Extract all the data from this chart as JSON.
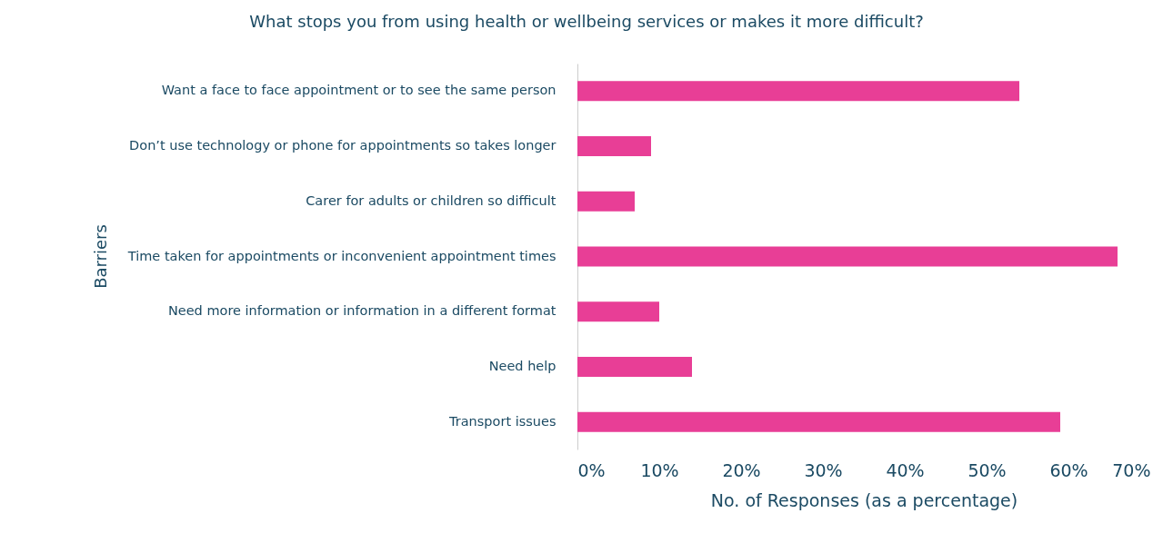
{
  "chart_data": {
    "type": "bar",
    "orientation": "horizontal",
    "title": "What stops you from using health or wellbeing services or makes it more difficult?",
    "xlabel": "No. of Responses (as a percentage)",
    "ylabel": "Barriers",
    "categories": [
      "Want a face to face appointment or to see the same person",
      "Don’t use technology or phone for appointments so takes longer",
      "Carer for adults or children so difficult",
      "Time taken for appointments or inconvenient appointment times",
      "Need more information or information in a different format",
      "Need help",
      "Transport issues"
    ],
    "values": [
      54,
      9,
      7,
      66,
      10,
      14,
      59
    ],
    "color": "#e83e96",
    "xlim": [
      0,
      70
    ],
    "xticks": [
      {
        "value": 0,
        "label": "0%"
      },
      {
        "value": 10,
        "label": "10%"
      },
      {
        "value": 20,
        "label": "20%"
      },
      {
        "value": 30,
        "label": "30%"
      },
      {
        "value": 40,
        "label": "40%"
      },
      {
        "value": 50,
        "label": "50%"
      },
      {
        "value": 60,
        "label": "60%"
      },
      {
        "value": 70,
        "label": "70%"
      }
    ],
    "grid": false
  }
}
